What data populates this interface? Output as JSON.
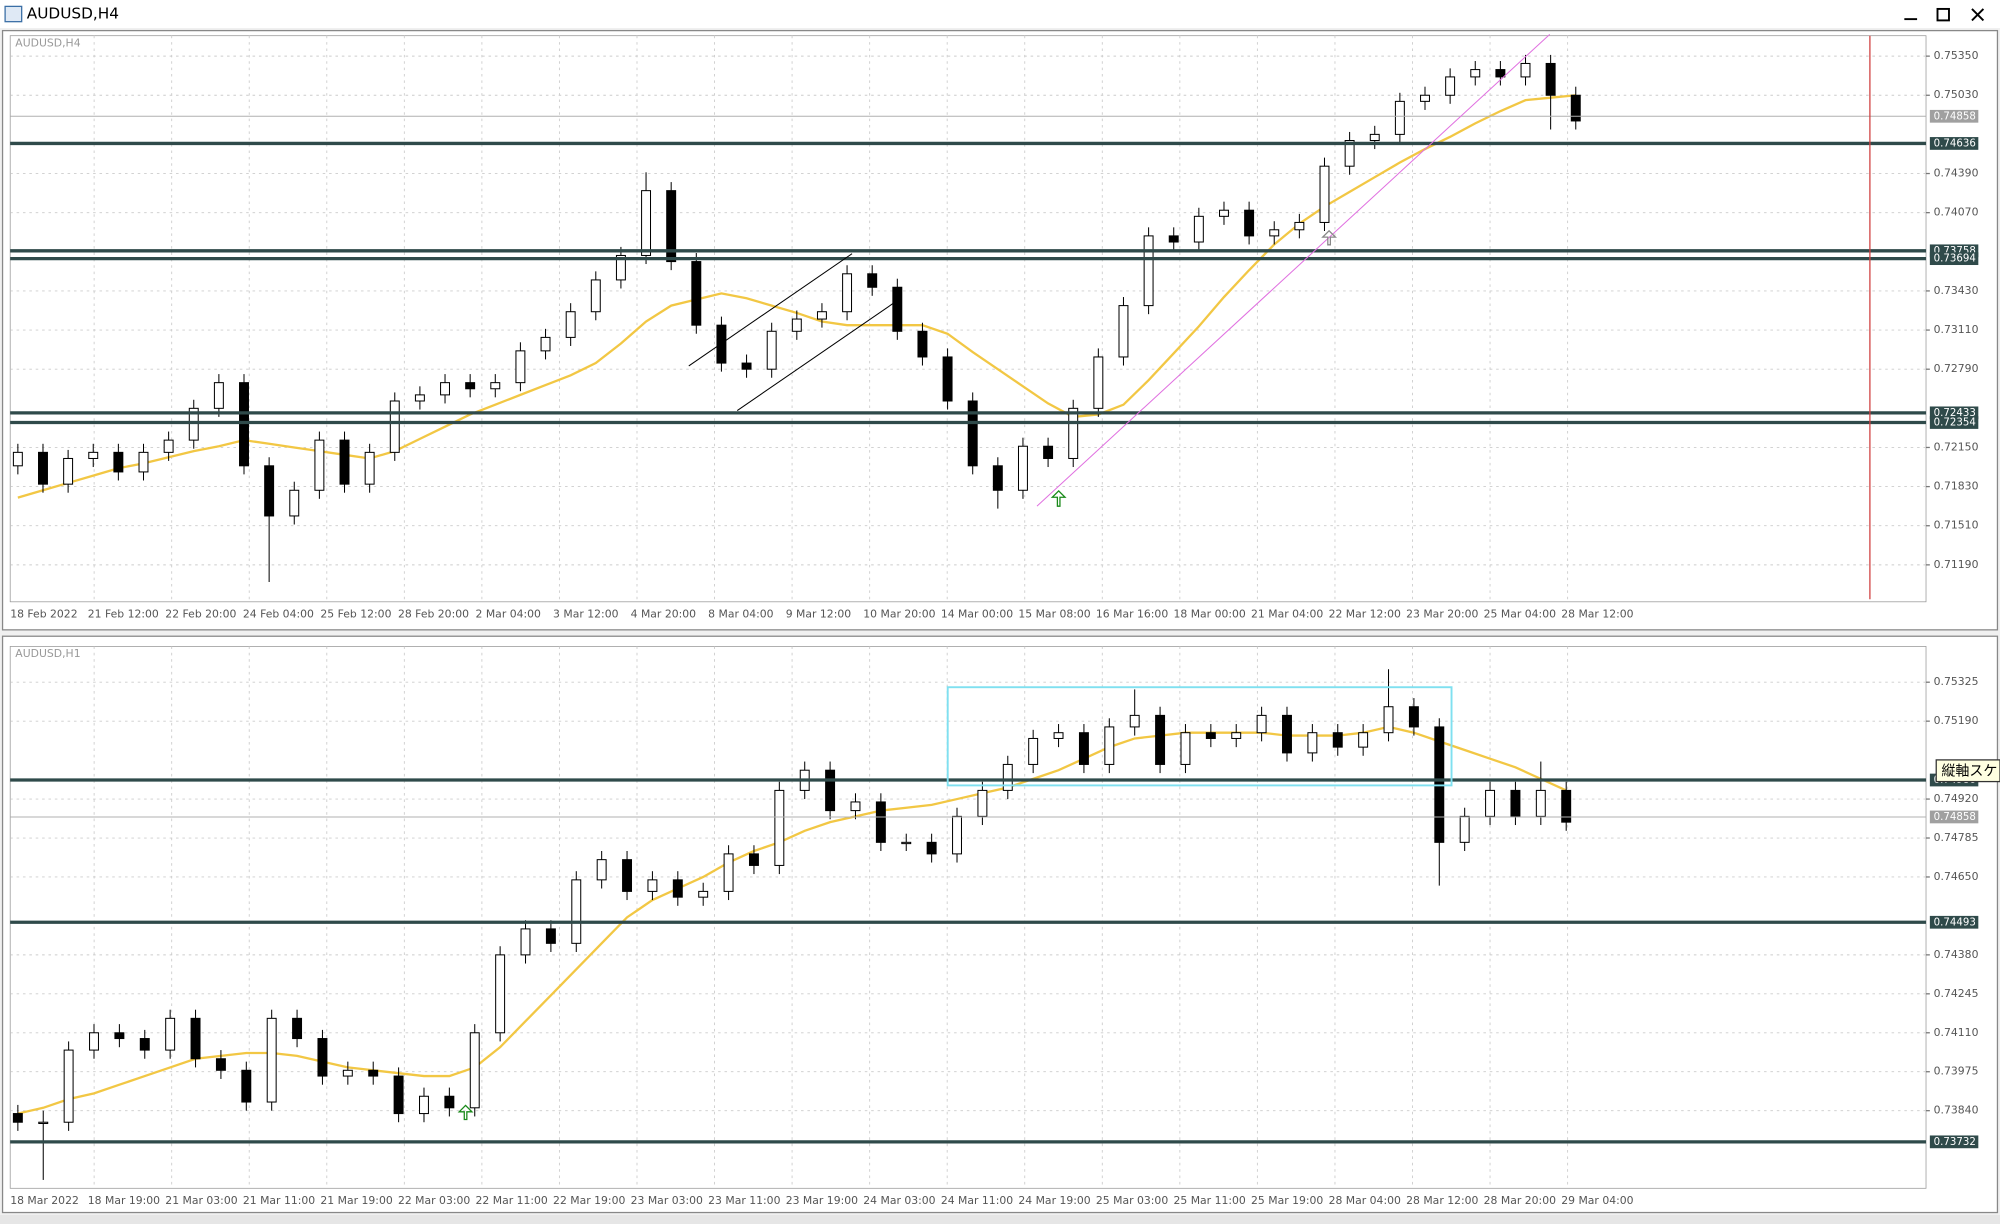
{
  "window": {
    "title": "AUDUSD,H4"
  },
  "tooltip": "縦軸スケ",
  "chart_data": [
    {
      "type": "candlestick",
      "title": "AUDUSD,H4",
      "open": [
        0.72,
        0.7211,
        0.7185,
        0.7206,
        0.7211,
        0.7195,
        0.7211,
        0.7221,
        0.7247,
        0.7268,
        0.72,
        0.7159,
        0.718,
        0.7221,
        0.7185,
        0.7211,
        0.7253,
        0.7258,
        0.7268,
        0.7263,
        0.7268,
        0.7294,
        0.7305,
        0.7326,
        0.7352,
        0.7372,
        0.7425,
        0.7367,
        0.7315,
        0.7284,
        0.7279,
        0.731,
        0.732,
        0.7326,
        0.7357,
        0.7346,
        0.731,
        0.7289,
        0.7253,
        0.72,
        0.718,
        0.7216,
        0.7206,
        0.7247,
        0.7289,
        0.7331,
        0.7388,
        0.7383,
        0.7404,
        0.7409,
        0.7388,
        0.7393,
        0.7399,
        0.7445,
        0.7466,
        0.7471,
        0.7498,
        0.7503,
        0.7518,
        0.7524,
        0.7518,
        0.7529,
        0.7503
      ],
      "high": [
        0.7218,
        0.7218,
        0.7213,
        0.7218,
        0.7218,
        0.7218,
        0.7228,
        0.7254,
        0.7275,
        0.7275,
        0.7207,
        0.7187,
        0.7228,
        0.7228,
        0.7218,
        0.726,
        0.7265,
        0.7275,
        0.7275,
        0.7275,
        0.7301,
        0.7312,
        0.7333,
        0.7359,
        0.7379,
        0.744,
        0.7432,
        0.7374,
        0.7322,
        0.7291,
        0.7317,
        0.7327,
        0.7333,
        0.7364,
        0.7364,
        0.7353,
        0.7317,
        0.7296,
        0.726,
        0.7207,
        0.7223,
        0.7223,
        0.7254,
        0.7296,
        0.7338,
        0.7395,
        0.7395,
        0.7411,
        0.7416,
        0.7416,
        0.74,
        0.7406,
        0.7452,
        0.7473,
        0.7478,
        0.7505,
        0.751,
        0.7525,
        0.7531,
        0.7531,
        0.7536,
        0.7536,
        0.751
      ],
      "low": [
        0.7193,
        0.7178,
        0.7178,
        0.7199,
        0.7188,
        0.7188,
        0.7204,
        0.7214,
        0.724,
        0.7193,
        0.7105,
        0.7152,
        0.7173,
        0.7178,
        0.7178,
        0.7204,
        0.7246,
        0.7251,
        0.7256,
        0.7256,
        0.7261,
        0.7287,
        0.7298,
        0.7319,
        0.7345,
        0.7365,
        0.736,
        0.7308,
        0.7277,
        0.7272,
        0.7272,
        0.7303,
        0.7313,
        0.7319,
        0.7339,
        0.7303,
        0.7282,
        0.7246,
        0.7193,
        0.7165,
        0.7173,
        0.7199,
        0.7199,
        0.724,
        0.7282,
        0.7324,
        0.7376,
        0.7376,
        0.7397,
        0.7381,
        0.7381,
        0.7386,
        0.7392,
        0.7438,
        0.7459,
        0.7464,
        0.7491,
        0.7496,
        0.7511,
        0.7511,
        0.7511,
        0.7475,
        0.7475
      ],
      "close": [
        0.7211,
        0.7185,
        0.7206,
        0.7211,
        0.7195,
        0.7211,
        0.7221,
        0.7247,
        0.7268,
        0.72,
        0.7159,
        0.718,
        0.7221,
        0.7185,
        0.7211,
        0.7253,
        0.7258,
        0.7268,
        0.7263,
        0.7268,
        0.7294,
        0.7305,
        0.7326,
        0.7352,
        0.7372,
        0.7425,
        0.7367,
        0.7315,
        0.7284,
        0.7279,
        0.731,
        0.732,
        0.7326,
        0.7357,
        0.7346,
        0.731,
        0.7289,
        0.7253,
        0.72,
        0.718,
        0.7216,
        0.7206,
        0.7247,
        0.7289,
        0.7331,
        0.7388,
        0.7383,
        0.7404,
        0.7409,
        0.7388,
        0.7393,
        0.7399,
        0.7445,
        0.7466,
        0.7471,
        0.7498,
        0.7503,
        0.7518,
        0.7524,
        0.7518,
        0.7529,
        0.7503,
        0.7482
      ],
      "moving_average": {
        "color": "#f2c744",
        "values": [
          0.7174,
          0.718,
          0.7186,
          0.7192,
          0.7198,
          0.7202,
          0.7207,
          0.7212,
          0.7216,
          0.7221,
          0.7218,
          0.7215,
          0.7212,
          0.7209,
          0.7206,
          0.7212,
          0.7222,
          0.7232,
          0.7242,
          0.725,
          0.7258,
          0.7266,
          0.7274,
          0.7284,
          0.73,
          0.7318,
          0.7331,
          0.7336,
          0.7341,
          0.7337,
          0.7331,
          0.7325,
          0.7318,
          0.7315,
          0.7315,
          0.7315,
          0.7315,
          0.7308,
          0.7293,
          0.7279,
          0.7265,
          0.7251,
          0.724,
          0.7242,
          0.725,
          0.727,
          0.7292,
          0.7314,
          0.7338,
          0.736,
          0.7381,
          0.7398,
          0.7412,
          0.7424,
          0.7436,
          0.7448,
          0.7459,
          0.7469,
          0.748,
          0.749,
          0.7499,
          0.7501,
          0.7503
        ]
      },
      "levels": [
        0.74636,
        0.73758,
        0.73694,
        0.72433,
        0.72354
      ],
      "current_price": 0.74858,
      "ylim": [
        0.70888,
        0.75517
      ],
      "yticks": [
        {
          "value": 0.7535,
          "label": "0.75350"
        },
        {
          "value": 0.7503,
          "label": "0.75030"
        },
        {
          "value": 0.7439,
          "label": "0.74390"
        },
        {
          "value": 0.7407,
          "label": "0.74070"
        },
        {
          "value": 0.7343,
          "label": "0.73430"
        },
        {
          "value": 0.7311,
          "label": "0.73110"
        },
        {
          "value": 0.7279,
          "label": "0.72790"
        },
        {
          "value": 0.7215,
          "label": "0.72150"
        },
        {
          "value": 0.7183,
          "label": "0.71830"
        },
        {
          "value": 0.7151,
          "label": "0.71510"
        },
        {
          "value": 0.7119,
          "label": "0.71190"
        }
      ],
      "xtick_labels": [
        "18 Feb 2022",
        "21 Feb 12:00",
        "22 Feb 20:00",
        "24 Feb 04:00",
        "25 Feb 12:00",
        "28 Feb 20:00",
        "2 Mar 04:00",
        "3 Mar 12:00",
        "4 Mar 20:00",
        "8 Mar 04:00",
        "9 Mar 12:00",
        "10 Mar 20:00",
        "14 Mar 00:00",
        "15 Mar 08:00",
        "16 Mar 16:00",
        "18 Mar 00:00",
        "21 Mar 04:00",
        "22 Mar 12:00",
        "23 Mar 20:00",
        "25 Mar 04:00",
        "28 Mar 12:00"
      ]
    },
    {
      "type": "candlestick",
      "title": "AUDUSD,H1",
      "open": [
        0.7383,
        0.738,
        0.738,
        0.7405,
        0.7411,
        0.7409,
        0.7405,
        0.7416,
        0.7402,
        0.7398,
        0.7387,
        0.7416,
        0.7409,
        0.7396,
        0.7398,
        0.7396,
        0.7383,
        0.7389,
        0.7385,
        0.7411,
        0.7438,
        0.7447,
        0.7442,
        0.7464,
        0.7471,
        0.746,
        0.7464,
        0.7458,
        0.746,
        0.7473,
        0.7469,
        0.7495,
        0.7502,
        0.7488,
        0.7491,
        0.7477,
        0.7477,
        0.7473,
        0.7486,
        0.7495,
        0.7504,
        0.7513,
        0.7515,
        0.7504,
        0.7517,
        0.7521,
        0.7504,
        0.7515,
        0.7513,
        0.7515,
        0.7521,
        0.7508,
        0.7515,
        0.751,
        0.7515,
        0.7524,
        0.7517,
        0.7477,
        0.7486,
        0.7495,
        0.7486,
        0.7495
      ],
      "high": [
        0.7386,
        0.7384,
        0.7408,
        0.7414,
        0.7414,
        0.7412,
        0.7419,
        0.7419,
        0.7405,
        0.7401,
        0.7419,
        0.7419,
        0.7412,
        0.7401,
        0.7401,
        0.7399,
        0.7392,
        0.7392,
        0.7414,
        0.7441,
        0.745,
        0.745,
        0.7467,
        0.7474,
        0.7474,
        0.7467,
        0.7467,
        0.7463,
        0.7476,
        0.7476,
        0.7498,
        0.7505,
        0.7505,
        0.7494,
        0.7494,
        0.748,
        0.748,
        0.7489,
        0.7498,
        0.7507,
        0.7516,
        0.7518,
        0.7518,
        0.752,
        0.753,
        0.7524,
        0.7518,
        0.7518,
        0.7518,
        0.7524,
        0.7524,
        0.7518,
        0.7518,
        0.7518,
        0.7537,
        0.7527,
        0.752,
        0.7489,
        0.7498,
        0.7498,
        0.7505,
        0.7498
      ],
      "low": [
        0.7377,
        0.736,
        0.7377,
        0.7402,
        0.7406,
        0.7402,
        0.7402,
        0.7399,
        0.7395,
        0.7384,
        0.7384,
        0.7406,
        0.7393,
        0.7393,
        0.7393,
        0.738,
        0.738,
        0.7382,
        0.7382,
        0.7408,
        0.7435,
        0.7439,
        0.7439,
        0.7461,
        0.7457,
        0.7457,
        0.7455,
        0.7455,
        0.7457,
        0.7466,
        0.7466,
        0.7492,
        0.7485,
        0.7485,
        0.7474,
        0.7474,
        0.747,
        0.747,
        0.7483,
        0.7492,
        0.7501,
        0.751,
        0.7501,
        0.7501,
        0.7514,
        0.7501,
        0.7501,
        0.751,
        0.751,
        0.7512,
        0.7505,
        0.7505,
        0.7507,
        0.7507,
        0.7512,
        0.7514,
        0.7462,
        0.7474,
        0.7483,
        0.7483,
        0.7483,
        0.7481
      ],
      "close": [
        0.738,
        0.738,
        0.7405,
        0.7411,
        0.7409,
        0.7405,
        0.7416,
        0.7402,
        0.7398,
        0.7387,
        0.7416,
        0.7409,
        0.7396,
        0.7398,
        0.7396,
        0.7383,
        0.7389,
        0.7385,
        0.7411,
        0.7438,
        0.7447,
        0.7442,
        0.7464,
        0.7471,
        0.746,
        0.7464,
        0.7458,
        0.746,
        0.7473,
        0.7469,
        0.7495,
        0.7502,
        0.7488,
        0.7491,
        0.7477,
        0.7477,
        0.7473,
        0.7486,
        0.7495,
        0.7504,
        0.7513,
        0.7515,
        0.7504,
        0.7517,
        0.7521,
        0.7504,
        0.7515,
        0.7513,
        0.7515,
        0.7521,
        0.7508,
        0.7515,
        0.751,
        0.7515,
        0.7524,
        0.7517,
        0.7477,
        0.7486,
        0.7495,
        0.7486,
        0.7495,
        0.7484
      ],
      "moving_average": {
        "color": "#f2c744",
        "values": [
          0.7383,
          0.7385,
          0.7388,
          0.739,
          0.7393,
          0.7396,
          0.7399,
          0.7402,
          0.7403,
          0.7404,
          0.7404,
          0.7403,
          0.7401,
          0.7399,
          0.7398,
          0.7397,
          0.7396,
          0.7396,
          0.7399,
          0.7406,
          0.7415,
          0.7424,
          0.7433,
          0.7442,
          0.7451,
          0.7457,
          0.7461,
          0.7465,
          0.747,
          0.7474,
          0.7477,
          0.7481,
          0.7484,
          0.7486,
          0.7488,
          0.7489,
          0.749,
          0.7492,
          0.7494,
          0.7496,
          0.7499,
          0.7502,
          0.7506,
          0.751,
          0.7513,
          0.7514,
          0.7515,
          0.7515,
          0.7515,
          0.7515,
          0.7514,
          0.7514,
          0.7514,
          0.7515,
          0.7517,
          0.7515,
          0.7512,
          0.7509,
          0.7506,
          0.7503,
          0.7499,
          0.7495
        ]
      },
      "levels": [
        0.74986,
        0.74493,
        0.73732
      ],
      "current_price": 0.74858,
      "ylim": [
        0.73571,
        0.75449
      ],
      "yticks": [
        {
          "value": 0.75325,
          "label": "0.75325"
        },
        {
          "value": 0.7519,
          "label": "0.75190"
        },
        {
          "value": 0.7492,
          "label": "0.74920"
        },
        {
          "value": 0.74785,
          "label": "0.74785"
        },
        {
          "value": 0.7465,
          "label": "0.74650"
        },
        {
          "value": 0.7438,
          "label": "0.74380"
        },
        {
          "value": 0.74245,
          "label": "0.74245"
        },
        {
          "value": 0.7411,
          "label": "0.74110"
        },
        {
          "value": 0.73975,
          "label": "0.73975"
        },
        {
          "value": 0.7384,
          "label": "0.73840"
        }
      ],
      "xtick_labels": [
        "18 Mar 2022",
        "18 Mar 19:00",
        "21 Mar 03:00",
        "21 Mar 11:00",
        "21 Mar 19:00",
        "22 Mar 03:00",
        "22 Mar 11:00",
        "22 Mar 19:00",
        "23 Mar 03:00",
        "23 Mar 11:00",
        "23 Mar 19:00",
        "24 Mar 03:00",
        "24 Mar 11:00",
        "24 Mar 19:00",
        "25 Mar 03:00",
        "25 Mar 11:00",
        "25 Mar 19:00",
        "28 Mar 04:00",
        "28 Mar 12:00",
        "28 Mar 20:00",
        "29 Mar 04:00"
      ]
    }
  ]
}
